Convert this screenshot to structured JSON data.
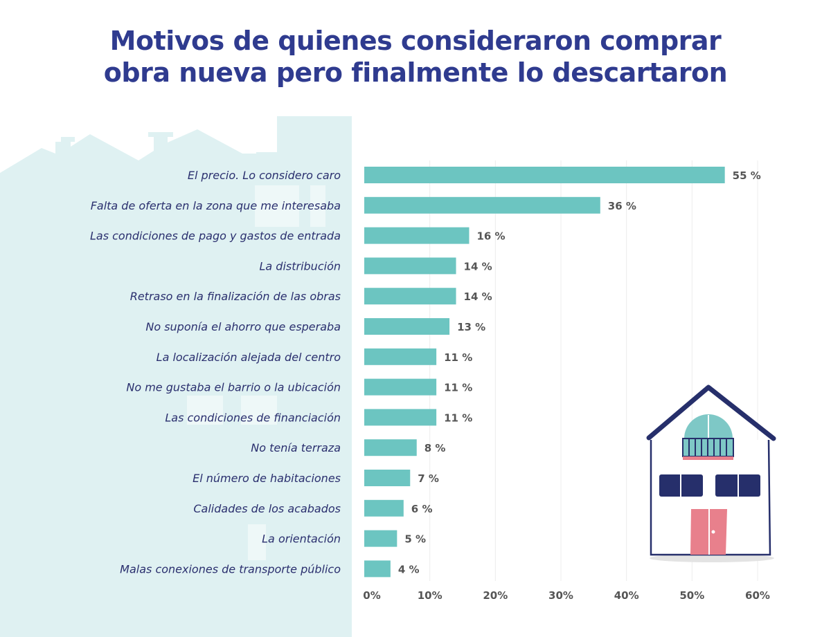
{
  "chart_data": {
    "type": "bar",
    "orientation": "horizontal",
    "title": "Motivos de quienes consideraron comprar obra nueva pero finalmente lo descartaron",
    "title_lines": [
      "Motivos de quienes consideraron comprar",
      "obra nueva pero finalmente lo descartaron"
    ],
    "categories": [
      "El precio. Lo considero caro",
      "Falta de oferta en la zona que me interesaba",
      "Las condiciones de pago y gastos de entrada",
      "La distribución",
      "Retraso en la finalización de las obras",
      "No suponía el ahorro que esperaba",
      "La localización alejada del centro",
      "No me gustaba el barrio o la ubicación",
      "Las condiciones de financiación",
      "No tenía terraza",
      "El número de habitaciones",
      "Calidades de los acabados",
      "La orientación",
      "Malas conexiones de transporte público"
    ],
    "values": [
      55,
      36,
      16,
      14,
      14,
      13,
      11,
      11,
      11,
      8,
      7,
      6,
      5,
      4
    ],
    "value_labels": [
      "55 %",
      "36 %",
      "16 %",
      "14 %",
      "14 %",
      "13 %",
      "11 %",
      "11 %",
      "11 %",
      "8 %",
      "7 %",
      "6 %",
      "5 %",
      "4 %"
    ],
    "xlim": [
      0,
      60
    ],
    "xticks": [
      0,
      10,
      20,
      30,
      40,
      50,
      60
    ],
    "xtick_labels": [
      "0%",
      "10%",
      "20%",
      "30%",
      "40%",
      "50%",
      "60%"
    ],
    "xlabel": "",
    "ylabel": "",
    "grid": true,
    "colors": {
      "bar": "#6cc5c1",
      "title": "#2f3b8f",
      "label": "#2a2f6e",
      "value": "#555555",
      "panel": "#dff1f2"
    }
  }
}
